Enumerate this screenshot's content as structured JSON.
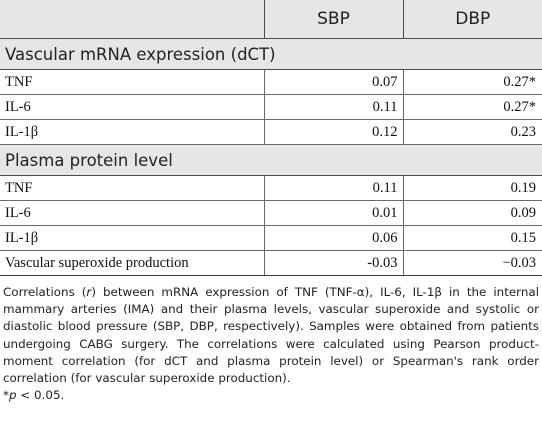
{
  "table": {
    "col_headers": [
      "",
      "SBP",
      "DBP"
    ],
    "sections": [
      {
        "title": "Vascular mRNA expression (dCT)",
        "rows": [
          {
            "label": "TNF",
            "sbp": "0.07",
            "dbp": "0.27*"
          },
          {
            "label": "IL-6",
            "sbp": "0.11",
            "dbp": "0.27*"
          },
          {
            "label": "IL-1β",
            "sbp": "0.12",
            "dbp": "0.23"
          }
        ]
      },
      {
        "title": "Plasma protein level",
        "rows": [
          {
            "label": "TNF",
            "sbp": "0.11",
            "dbp": "0.19"
          },
          {
            "label": "IL-6",
            "sbp": "0.01",
            "dbp": "0.09"
          },
          {
            "label": "IL-1β",
            "sbp": "0.06",
            "dbp": "0.15"
          },
          {
            "label": "Vascular superoxide production",
            "sbp": "-0.03",
            "dbp": "−0.03"
          }
        ]
      }
    ]
  },
  "footnote": {
    "pre_r": "Correlations (",
    "r": "r",
    "post_r": ") between mRNA expression of TNF (TNF-α), IL-6, IL-1β in the internal mammary arteries (IMA) and their plasma levels, vascular superoxide and systolic or diastolic blood pressure (SBP, DBP, respectively). Samples were obtained from patients undergoing CABG surgery. The correlations were calculated using Pearson product-moment correlation (for dCT and plasma protein level) or Spearman's rank order correlation (for vascular superoxide production).",
    "sig_star": "*",
    "sig_p": "p",
    "sig_rest": " < 0.05."
  }
}
